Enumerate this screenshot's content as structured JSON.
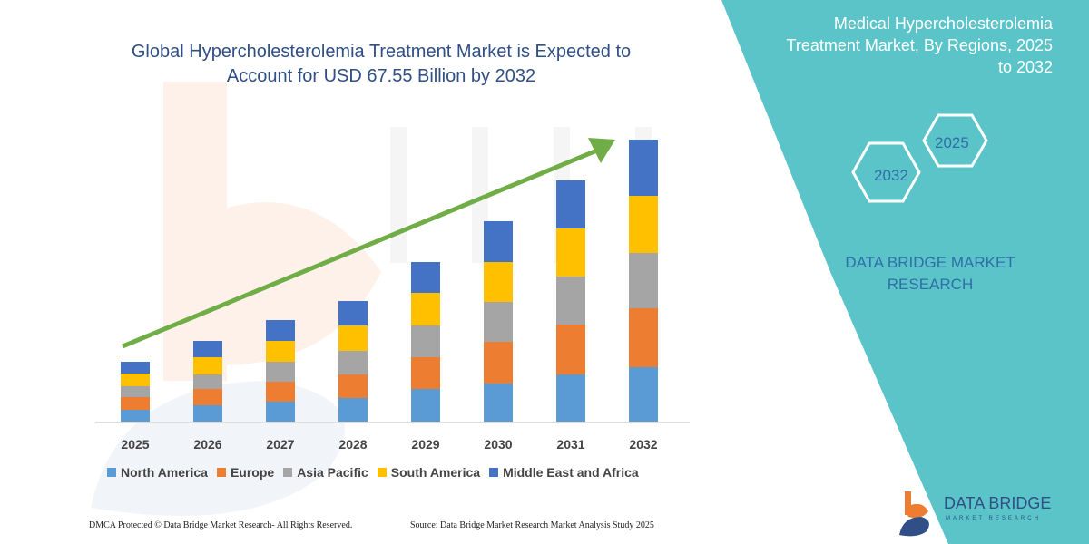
{
  "title": "Global Hypercholesterolemia Treatment Market is Expected to Account for USD 67.55 Billion by 2032",
  "side_panel": {
    "title": "Medical Hypercholesterolemia Treatment Market, By Regions, 2025 to 2032",
    "hex_start": "2025",
    "hex_end": "2032",
    "brand": "DATA BRIDGE MARKET RESEARCH",
    "color": "#5bc4c9"
  },
  "footer": {
    "copyright": "DMCA Protected © Data Bridge Market Research- All Rights Reserved.",
    "source": "Source: Data Bridge Market Research Market Analysis Study 2025"
  },
  "logo": {
    "name": "DATA BRIDGE",
    "sub": "MARKET RESEARCH"
  },
  "watermark": "DATA BRIDGE",
  "chart_data": {
    "type": "bar",
    "stacked": true,
    "title": "",
    "xlabel": "",
    "ylabel": "",
    "categories": [
      "2025",
      "2026",
      "2027",
      "2028",
      "2029",
      "2030",
      "2031",
      "2032"
    ],
    "series": [
      {
        "name": "North America",
        "color": "#5b9bd5",
        "values": [
          13,
          18,
          22,
          26,
          36,
          42,
          52,
          60
        ]
      },
      {
        "name": "Europe",
        "color": "#ed7d31",
        "values": [
          14,
          18,
          22,
          26,
          35,
          46,
          55,
          65
        ]
      },
      {
        "name": "Asia Pacific",
        "color": "#a5a5a5",
        "values": [
          12,
          16,
          22,
          26,
          35,
          44,
          53,
          61
        ]
      },
      {
        "name": "South America",
        "color": "#ffc000",
        "values": [
          14,
          19,
          23,
          28,
          36,
          44,
          53,
          63
        ]
      },
      {
        "name": "Middle East and Africa",
        "color": "#4472c4",
        "values": [
          13,
          18,
          23,
          27,
          34,
          45,
          53,
          62
        ]
      }
    ],
    "ylim": [
      0,
      311
    ],
    "grid": false,
    "legend": "bottom",
    "trend_arrow": {
      "color": "#70ad47",
      "direction": "up-right"
    }
  }
}
